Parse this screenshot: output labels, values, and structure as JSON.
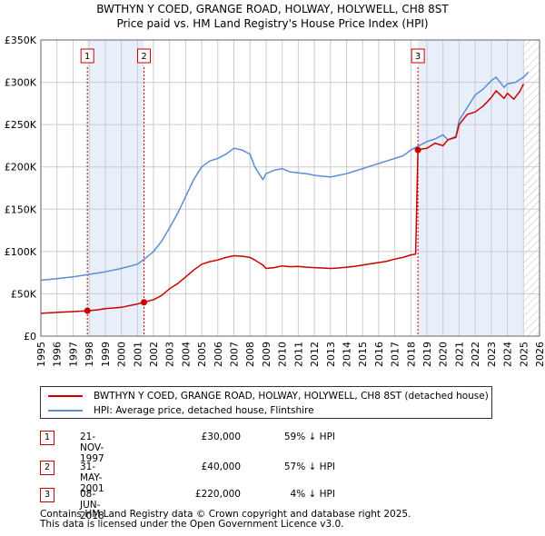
{
  "header": {
    "title_line1": "BWTHYN Y COED, GRANGE ROAD, HOLWAY, HOLYWELL, CH8 8ST",
    "title_line2": "Price paid vs. HM Land Registry's House Price Index (HPI)"
  },
  "colors": {
    "price_line": "#cc0000",
    "hpi_line": "#5b8ed6",
    "shade": "#e8eefa",
    "grid": "#cccccc",
    "marker_border": "#cc0000"
  },
  "chart_data": {
    "type": "line",
    "title": "Price paid vs. HM Land Registry's House Price Index (HPI)",
    "xlabel": "",
    "ylabel": "",
    "xlim": [
      1995,
      2026
    ],
    "ylim": [
      0,
      350000
    ],
    "x_ticks": [
      "1995",
      "1996",
      "1997",
      "1998",
      "1999",
      "2000",
      "2001",
      "2002",
      "2003",
      "2004",
      "2005",
      "2006",
      "2007",
      "2008",
      "2009",
      "2010",
      "2011",
      "2012",
      "2013",
      "2014",
      "2015",
      "2016",
      "2017",
      "2018",
      "2019",
      "2020",
      "2021",
      "2022",
      "2023",
      "2024",
      "2025",
      "2026"
    ],
    "y_ticks": [
      {
        "value": 0,
        "label": "£0"
      },
      {
        "value": 50000,
        "label": "£50K"
      },
      {
        "value": 100000,
        "label": "£100K"
      },
      {
        "value": 150000,
        "label": "£150K"
      },
      {
        "value": 200000,
        "label": "£200K"
      },
      {
        "value": 250000,
        "label": "£250K"
      },
      {
        "value": 300000,
        "label": "£300K"
      },
      {
        "value": 350000,
        "label": "£350K"
      }
    ],
    "grid": true,
    "shaded_periods": [
      [
        1997.89,
        2001.41
      ],
      [
        2018.44,
        2025.0
      ]
    ],
    "future_hatch_from": 2025.0,
    "series": [
      {
        "name": "BWTHYN Y COED, GRANGE ROAD, HOLWAY, HOLYWELL, CH8 8ST (detached house)",
        "color": "#cc0000",
        "x": [
          1995,
          1996,
          1997,
          1997.89,
          1998.5,
          1999,
          2000,
          2001,
          2001.41,
          2002,
          2002.5,
          2003,
          2003.5,
          2004,
          2004.5,
          2005,
          2005.5,
          2006,
          2006.5,
          2007,
          2007.5,
          2008,
          2008.3,
          2008.8,
          2009,
          2009.5,
          2010,
          2010.5,
          2011,
          2011.5,
          2012,
          2012.5,
          2013,
          2013.5,
          2014,
          2014.5,
          2015,
          2015.5,
          2016,
          2016.5,
          2017,
          2017.5,
          2018,
          2018.3,
          2018.44,
          2018.6,
          2019,
          2019.5,
          2020,
          2020.3,
          2020.8,
          2021,
          2021.5,
          2022,
          2022.5,
          2023,
          2023.3,
          2023.8,
          2024,
          2024.4,
          2024.8,
          2025.0
        ],
        "values": [
          27000,
          28000,
          29000,
          30000,
          31000,
          32500,
          34000,
          38000,
          40000,
          43000,
          48000,
          56000,
          62000,
          70000,
          78000,
          85000,
          88000,
          90000,
          93000,
          95000,
          94500,
          93000,
          90000,
          84000,
          80000,
          81000,
          83000,
          82000,
          82500,
          81500,
          81000,
          80500,
          80000,
          80500,
          81500,
          82500,
          84000,
          85500,
          87000,
          88500,
          91000,
          93000,
          96000,
          97000,
          220000,
          221000,
          222000,
          228000,
          225000,
          232000,
          235000,
          250000,
          262000,
          265000,
          272000,
          282000,
          290000,
          281000,
          287000,
          280000,
          290000,
          298000
        ]
      },
      {
        "name": "HPI: Average price, detached house, Flintshire",
        "color": "#5b8ed6",
        "x": [
          1995,
          1996,
          1997,
          1998,
          1999,
          2000,
          2001,
          2001.5,
          2002,
          2002.5,
          2003,
          2003.5,
          2004,
          2004.5,
          2005,
          2005.5,
          2006,
          2006.5,
          2007,
          2007.5,
          2008,
          2008.3,
          2008.8,
          2009,
          2009.5,
          2010,
          2010.5,
          2011,
          2011.5,
          2012,
          2012.5,
          2013,
          2013.5,
          2014,
          2014.5,
          2015,
          2015.5,
          2016,
          2016.5,
          2017,
          2017.5,
          2018,
          2018.5,
          2019,
          2019.5,
          2020,
          2020.3,
          2020.8,
          2021,
          2021.5,
          2022,
          2022.5,
          2023,
          2023.3,
          2023.8,
          2024,
          2024.5,
          2025,
          2025.3
        ],
        "values": [
          66000,
          68000,
          70000,
          73000,
          76000,
          80000,
          85000,
          92000,
          100000,
          112000,
          128000,
          145000,
          165000,
          185000,
          200000,
          207000,
          210000,
          215000,
          222000,
          220000,
          215000,
          200000,
          185000,
          192000,
          196000,
          198000,
          194000,
          193000,
          192000,
          190000,
          189000,
          188000,
          190000,
          192000,
          195000,
          198000,
          201000,
          204000,
          207000,
          210000,
          213000,
          220000,
          225000,
          230000,
          233000,
          238000,
          232000,
          236000,
          255000,
          270000,
          285000,
          292000,
          302000,
          306000,
          294000,
          298000,
          300000,
          306000,
          312000
        ]
      }
    ],
    "annotations": [
      {
        "label": "1",
        "x": 1997.89,
        "y": 30000
      },
      {
        "label": "2",
        "x": 2001.41,
        "y": 40000
      },
      {
        "label": "3",
        "x": 2018.44,
        "y": 220000
      }
    ]
  },
  "legend": {
    "items": [
      {
        "label": "BWTHYN Y COED, GRANGE ROAD, HOLWAY, HOLYWELL, CH8 8ST (detached house)"
      },
      {
        "label": "HPI: Average price, detached house, Flintshire"
      }
    ]
  },
  "sales": [
    {
      "num": "1",
      "date": "21-NOV-1997",
      "price": "£30,000",
      "hpi": "59% ↓ HPI"
    },
    {
      "num": "2",
      "date": "31-MAY-2001",
      "price": "£40,000",
      "hpi": "57% ↓ HPI"
    },
    {
      "num": "3",
      "date": "08-JUN-2018",
      "price": "£220,000",
      "hpi": "4% ↓ HPI"
    }
  ],
  "footer": {
    "line1": "Contains HM Land Registry data © Crown copyright and database right 2025.",
    "line2": "This data is licensed under the Open Government Licence v3.0."
  }
}
